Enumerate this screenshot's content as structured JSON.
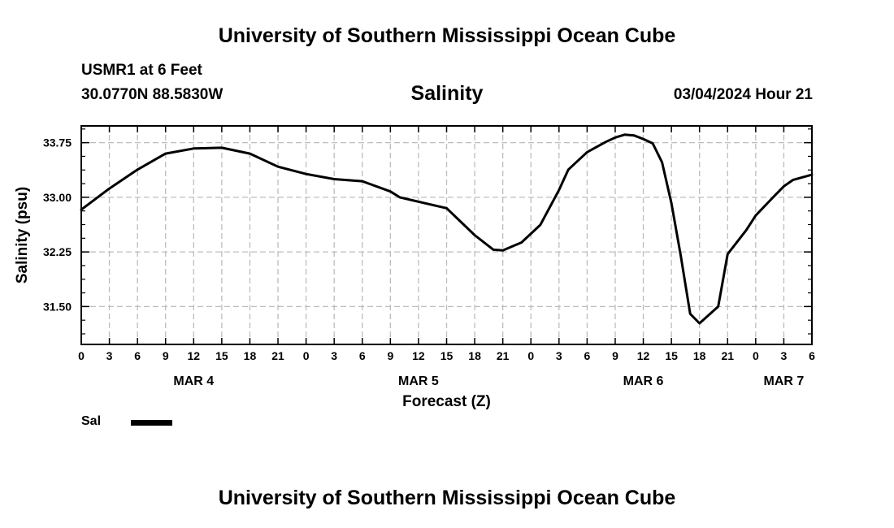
{
  "header": {
    "title": "University of Southern Mississippi Ocean Cube",
    "station": "USMR1 at 6 Feet",
    "coordinates": "30.0770N  88.5830W",
    "datetime": "03/04/2024 Hour 21"
  },
  "footer": {
    "title": "University of Southern Mississippi Ocean Cube"
  },
  "legend": {
    "label": "Sal",
    "color": "#000000"
  },
  "chart_data": {
    "type": "line",
    "title": "Salinity",
    "xlabel": "Forecast (Z)",
    "ylabel": "Salinity (psu)",
    "xlim": [
      0,
      78
    ],
    "ylim": [
      30.98,
      33.98
    ],
    "grid": true,
    "xticks": [
      {
        "x": 0,
        "label": "0"
      },
      {
        "x": 3,
        "label": "3"
      },
      {
        "x": 6,
        "label": "6"
      },
      {
        "x": 9,
        "label": "9"
      },
      {
        "x": 12,
        "label": "12"
      },
      {
        "x": 15,
        "label": "15"
      },
      {
        "x": 18,
        "label": "18"
      },
      {
        "x": 21,
        "label": "21"
      },
      {
        "x": 24,
        "label": "0"
      },
      {
        "x": 27,
        "label": "3"
      },
      {
        "x": 30,
        "label": "6"
      },
      {
        "x": 33,
        "label": "9"
      },
      {
        "x": 36,
        "label": "12"
      },
      {
        "x": 39,
        "label": "15"
      },
      {
        "x": 42,
        "label": "18"
      },
      {
        "x": 45,
        "label": "21"
      },
      {
        "x": 48,
        "label": "0"
      },
      {
        "x": 51,
        "label": "3"
      },
      {
        "x": 54,
        "label": "6"
      },
      {
        "x": 57,
        "label": "9"
      },
      {
        "x": 60,
        "label": "12"
      },
      {
        "x": 63,
        "label": "15"
      },
      {
        "x": 66,
        "label": "18"
      },
      {
        "x": 69,
        "label": "21"
      },
      {
        "x": 72,
        "label": "0"
      },
      {
        "x": 75,
        "label": "3"
      },
      {
        "x": 78,
        "label": "6"
      }
    ],
    "day_labels": [
      {
        "x": 12,
        "label": "MAR 4"
      },
      {
        "x": 36,
        "label": "MAR 5"
      },
      {
        "x": 60,
        "label": "MAR 6"
      },
      {
        "x": 75,
        "label": "MAR 7"
      }
    ],
    "yticks": [
      {
        "y": 31.5,
        "label": "31.50"
      },
      {
        "y": 32.25,
        "label": "32.25"
      },
      {
        "y": 33.0,
        "label": "33.00"
      },
      {
        "y": 33.75,
        "label": "33.75"
      }
    ],
    "series": [
      {
        "name": "Sal",
        "x": [
          0,
          3,
          6,
          9,
          12,
          15,
          18,
          21,
          24,
          27,
          30,
          33,
          34,
          36,
          39,
          42,
          44,
          45,
          47,
          49,
          51,
          52,
          54,
          56,
          57,
          58,
          59,
          60,
          61,
          62,
          63,
          64,
          64.5,
          65,
          66,
          68,
          69,
          71,
          72,
          74,
          75,
          76,
          78
        ],
        "y": [
          32.83,
          33.12,
          33.38,
          33.6,
          33.67,
          33.68,
          33.6,
          33.42,
          33.32,
          33.25,
          33.22,
          33.08,
          33.0,
          32.94,
          32.85,
          32.48,
          32.28,
          32.27,
          32.38,
          32.62,
          33.1,
          33.38,
          33.62,
          33.76,
          33.82,
          33.86,
          33.85,
          33.8,
          33.74,
          33.48,
          32.92,
          32.2,
          31.8,
          31.4,
          31.27,
          31.5,
          32.22,
          32.55,
          32.75,
          33.02,
          33.15,
          33.24,
          33.31
        ]
      }
    ]
  }
}
